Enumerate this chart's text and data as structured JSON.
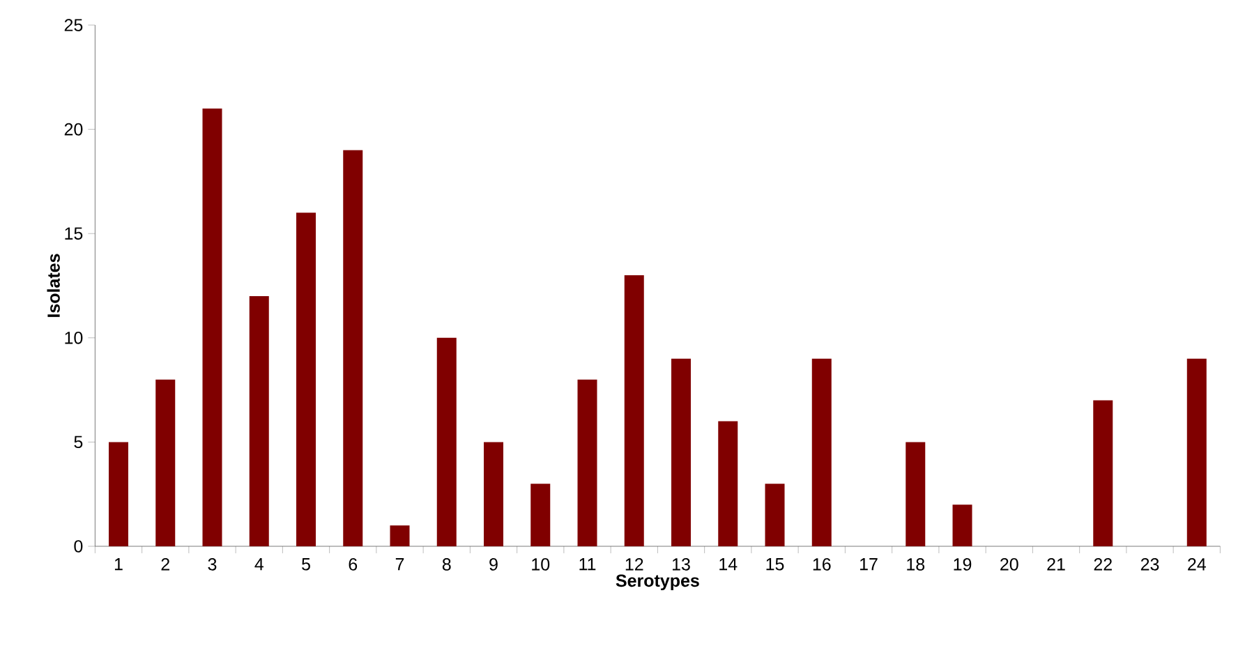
{
  "chart_data": {
    "type": "bar",
    "xlabel": "Serotypes",
    "ylabel": "Isolates",
    "categories": [
      "1",
      "2",
      "3",
      "4",
      "5",
      "6",
      "7",
      "8",
      "9",
      "10",
      "11",
      "12",
      "13",
      "14",
      "15",
      "16",
      "17",
      "18",
      "19",
      "20",
      "21",
      "22",
      "23",
      "24"
    ],
    "values": [
      5,
      8,
      21,
      12,
      16,
      19,
      1,
      10,
      5,
      3,
      8,
      13,
      9,
      6,
      3,
      9,
      0,
      5,
      2,
      0,
      0,
      7,
      0,
      9
    ],
    "color": "#800000",
    "ylim": [
      0,
      25
    ],
    "yticks": [
      0,
      5,
      10,
      15,
      20,
      25
    ],
    "grid": false
  }
}
